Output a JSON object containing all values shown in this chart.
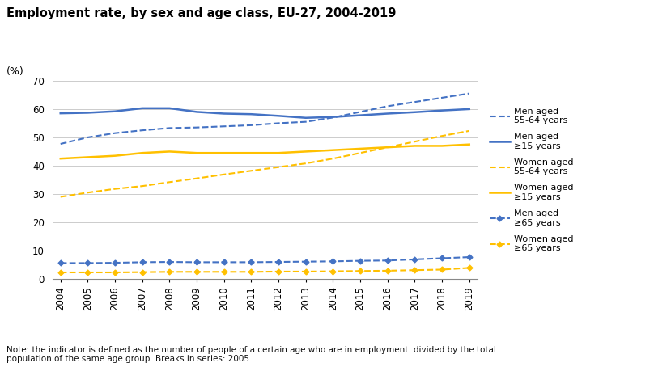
{
  "title": "Employment rate, by sex and age class, EU-27, 2004-2019",
  "ylabel": "(%)",
  "years": [
    2004,
    2005,
    2006,
    2007,
    2008,
    2009,
    2010,
    2011,
    2012,
    2013,
    2014,
    2015,
    2016,
    2017,
    2018,
    2019
  ],
  "men_55_64": [
    47.7,
    50.0,
    51.5,
    52.5,
    53.3,
    53.5,
    53.9,
    54.3,
    55.0,
    55.5,
    57.0,
    59.0,
    61.0,
    62.5,
    64.0,
    65.5
  ],
  "men_15plus": [
    58.5,
    58.7,
    59.2,
    60.3,
    60.3,
    59.0,
    58.4,
    58.2,
    57.6,
    56.9,
    57.2,
    57.8,
    58.4,
    58.9,
    59.5,
    60.0
  ],
  "women_55_64": [
    29.0,
    30.5,
    31.8,
    32.8,
    34.2,
    35.5,
    36.9,
    38.2,
    39.5,
    40.8,
    42.5,
    44.5,
    46.5,
    48.5,
    50.5,
    52.3
  ],
  "women_15plus": [
    42.5,
    43.0,
    43.5,
    44.5,
    45.0,
    44.5,
    44.5,
    44.5,
    44.5,
    45.0,
    45.5,
    46.0,
    46.5,
    47.0,
    47.0,
    47.5
  ],
  "men_65plus": [
    5.6,
    5.6,
    5.7,
    5.9,
    6.0,
    5.9,
    5.9,
    5.9,
    6.0,
    6.1,
    6.2,
    6.4,
    6.5,
    6.9,
    7.3,
    7.7
  ],
  "women_65plus": [
    2.3,
    2.3,
    2.3,
    2.4,
    2.5,
    2.5,
    2.5,
    2.5,
    2.6,
    2.6,
    2.7,
    2.8,
    2.9,
    3.1,
    3.3,
    3.9
  ],
  "blue": "#4472C4",
  "orange": "#FFC000",
  "note_line1": "Note: the indicator is defined as the number of people of a certain age who are in employment  divided by the total",
  "note_line2": "population of the same age group. Breaks in series: 2005.",
  "ylim": [
    0,
    70
  ],
  "yticks": [
    0,
    10,
    20,
    30,
    40,
    50,
    60,
    70
  ],
  "bg_color": "#FFFFFF"
}
